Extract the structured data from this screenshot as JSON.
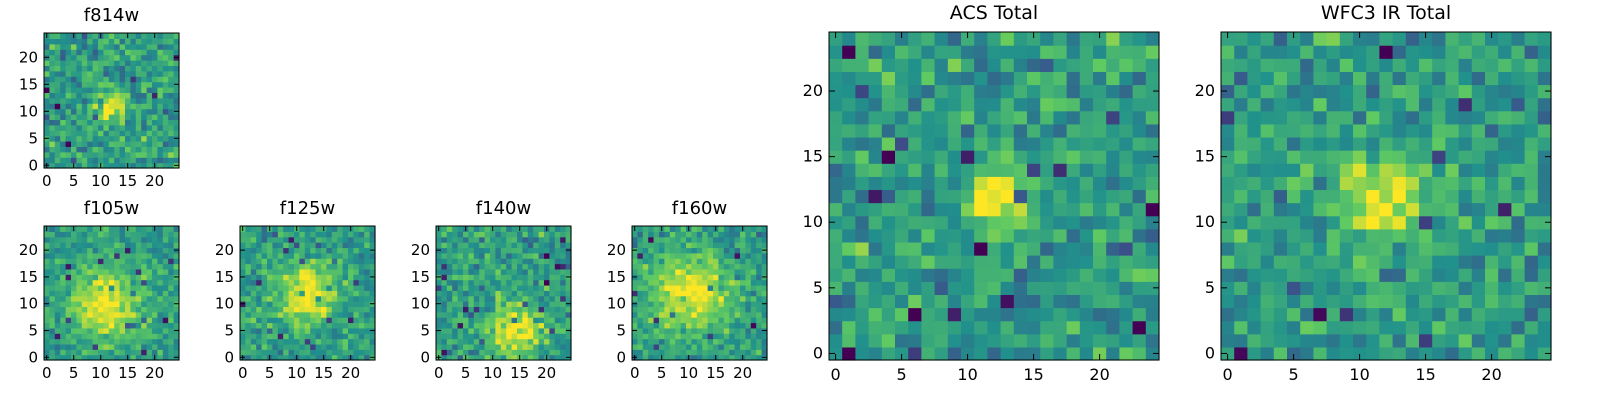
{
  "figure": {
    "colormap": [
      "#440154",
      "#3b528b",
      "#21918c",
      "#5ec962",
      "#fde725"
    ]
  },
  "chart_data": [
    {
      "type": "heatmap",
      "title": "f814w",
      "rows": 25,
      "cols": 25,
      "xlim": [
        0,
        24
      ],
      "ylim": [
        0,
        24
      ],
      "xticks": [
        0,
        5,
        10,
        15,
        20
      ],
      "yticks": [
        0,
        5,
        10,
        15,
        20
      ],
      "xlabel": "",
      "ylabel": "",
      "grid": false,
      "source_center": [
        12,
        11
      ],
      "source_sigma": 2.0,
      "noise": 0.3,
      "seed": 11
    },
    {
      "type": "heatmap",
      "title": "f105w",
      "rows": 25,
      "cols": 25,
      "xlim": [
        0,
        24
      ],
      "ylim": [
        0,
        24
      ],
      "xticks": [
        0,
        5,
        10,
        15,
        20
      ],
      "yticks": [
        0,
        5,
        10,
        15,
        20
      ],
      "xlabel": "",
      "ylabel": "",
      "grid": false,
      "source_center": [
        11,
        10
      ],
      "source_sigma": 4.5,
      "noise": 0.22,
      "seed": 23
    },
    {
      "type": "heatmap",
      "title": "f125w",
      "rows": 25,
      "cols": 25,
      "xlim": [
        0,
        24
      ],
      "ylim": [
        0,
        24
      ],
      "xticks": [
        0,
        5,
        10,
        15,
        20
      ],
      "yticks": [
        0,
        5,
        10,
        15,
        20
      ],
      "xlabel": "",
      "ylabel": "",
      "grid": false,
      "source_center": [
        12,
        12
      ],
      "source_sigma": 4.0,
      "noise": 0.25,
      "seed": 37
    },
    {
      "type": "heatmap",
      "title": "f140w",
      "rows": 25,
      "cols": 25,
      "xlim": [
        0,
        24
      ],
      "ylim": [
        0,
        24
      ],
      "xticks": [
        0,
        5,
        10,
        15,
        20
      ],
      "yticks": [
        0,
        5,
        10,
        15,
        20
      ],
      "xlabel": "",
      "ylabel": "",
      "grid": false,
      "source_center": [
        14,
        5
      ],
      "source_sigma": 3.5,
      "noise": 0.27,
      "seed": 41
    },
    {
      "type": "heatmap",
      "title": "f160w",
      "rows": 25,
      "cols": 25,
      "xlim": [
        0,
        24
      ],
      "ylim": [
        0,
        24
      ],
      "xticks": [
        0,
        5,
        10,
        15,
        20
      ],
      "yticks": [
        0,
        5,
        10,
        15,
        20
      ],
      "xlabel": "",
      "ylabel": "",
      "grid": false,
      "source_center": [
        10,
        12
      ],
      "source_sigma": 5.0,
      "noise": 0.24,
      "seed": 53
    },
    {
      "type": "heatmap",
      "title": "ACS Total",
      "rows": 25,
      "cols": 25,
      "xlim": [
        0,
        24
      ],
      "ylim": [
        0,
        24
      ],
      "xticks": [
        0,
        5,
        10,
        15,
        20
      ],
      "yticks": [
        0,
        5,
        10,
        15,
        20
      ],
      "xlabel": "",
      "ylabel": "",
      "grid": false,
      "source_center": [
        12.5,
        11.5
      ],
      "source_sigma": 1.8,
      "noise": 0.3,
      "seed": 67
    },
    {
      "type": "heatmap",
      "title": "WFC3 IR Total",
      "rows": 25,
      "cols": 25,
      "xlim": [
        0,
        24
      ],
      "ylim": [
        0,
        24
      ],
      "xticks": [
        0,
        5,
        10,
        15,
        20
      ],
      "yticks": [
        0,
        5,
        10,
        15,
        20
      ],
      "xlabel": "",
      "ylabel": "",
      "grid": false,
      "source_center": [
        12,
        12
      ],
      "source_sigma": 2.2,
      "noise": 0.28,
      "seed": 79
    }
  ]
}
